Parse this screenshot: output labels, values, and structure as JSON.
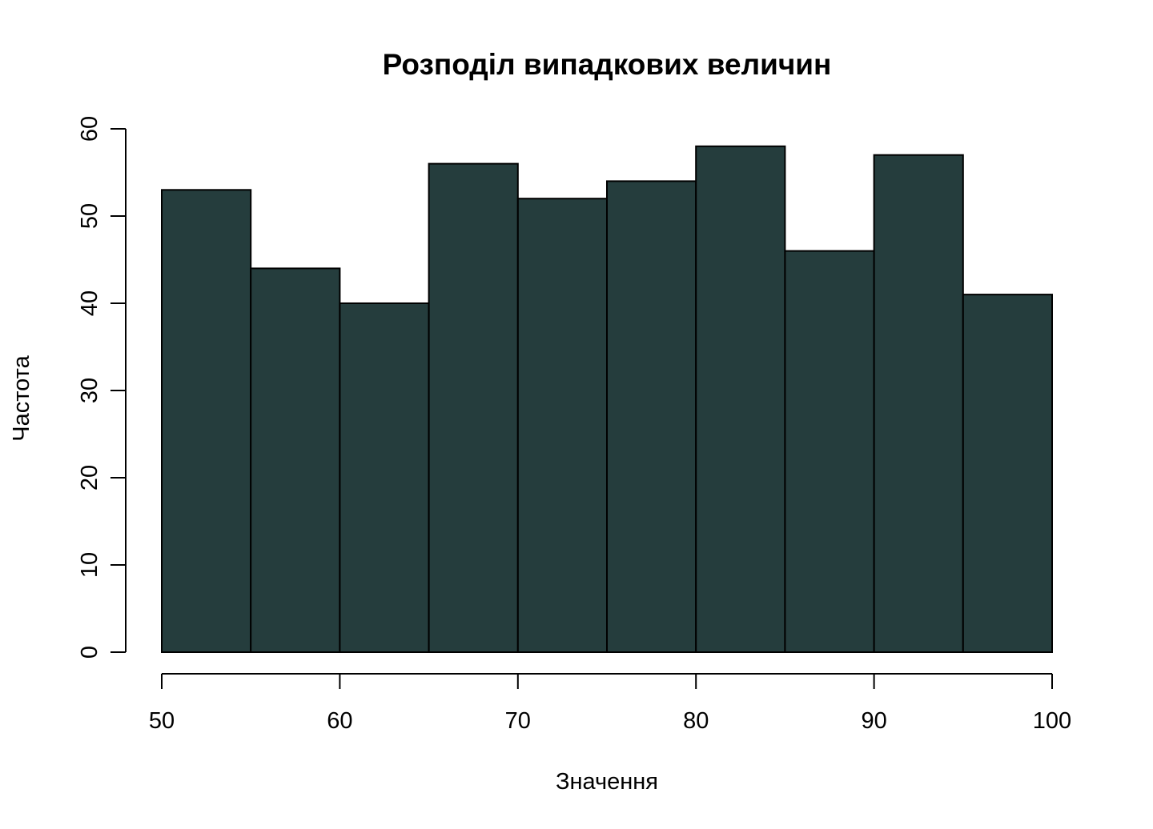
{
  "chart_data": {
    "type": "bar",
    "title": "Розподіл випадкових величин",
    "xlabel": "Значення",
    "ylabel": "Частота",
    "bin_edges": [
      50,
      55,
      60,
      65,
      70,
      75,
      80,
      85,
      90,
      95,
      100
    ],
    "values": [
      53,
      44,
      40,
      56,
      52,
      54,
      58,
      46,
      57,
      41
    ],
    "xlim": [
      50,
      100
    ],
    "ylim": [
      0,
      60
    ],
    "x_ticks": [
      "50",
      "60",
      "70",
      "80",
      "90",
      "100"
    ],
    "y_ticks": [
      "0",
      "10",
      "20",
      "30",
      "40",
      "50",
      "60"
    ],
    "grid": false,
    "bar_color": "#253d3d"
  }
}
